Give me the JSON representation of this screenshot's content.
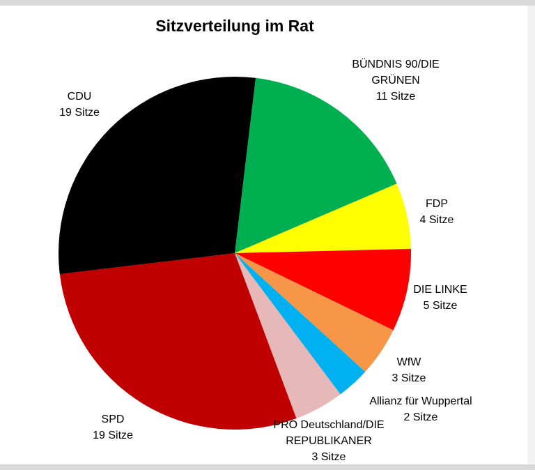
{
  "chart_data": {
    "type": "pie",
    "title": "Sitzverteilung im Rat",
    "categories": [
      "BÜNDNIS 90/DIE GRÜNEN",
      "FDP",
      "DIE LINKE",
      "WfW",
      "Allianz für Wuppertal",
      "PRO Deutschland/DIE REPUBLIKANER",
      "SPD",
      "CDU"
    ],
    "values": [
      11,
      4,
      5,
      3,
      2,
      3,
      19,
      19
    ],
    "value_labels": [
      "11 Sitze",
      "4 Sitze",
      "5 Sitze",
      "3 Sitze",
      "2 Sitze",
      "3 Sitze",
      "19 Sitze",
      "19 Sitze"
    ],
    "colors": [
      "#00b050",
      "#ffff00",
      "#ff0000",
      "#f79646",
      "#00b0f0",
      "#e6b9b8",
      "#c00000",
      "#000000"
    ]
  }
}
